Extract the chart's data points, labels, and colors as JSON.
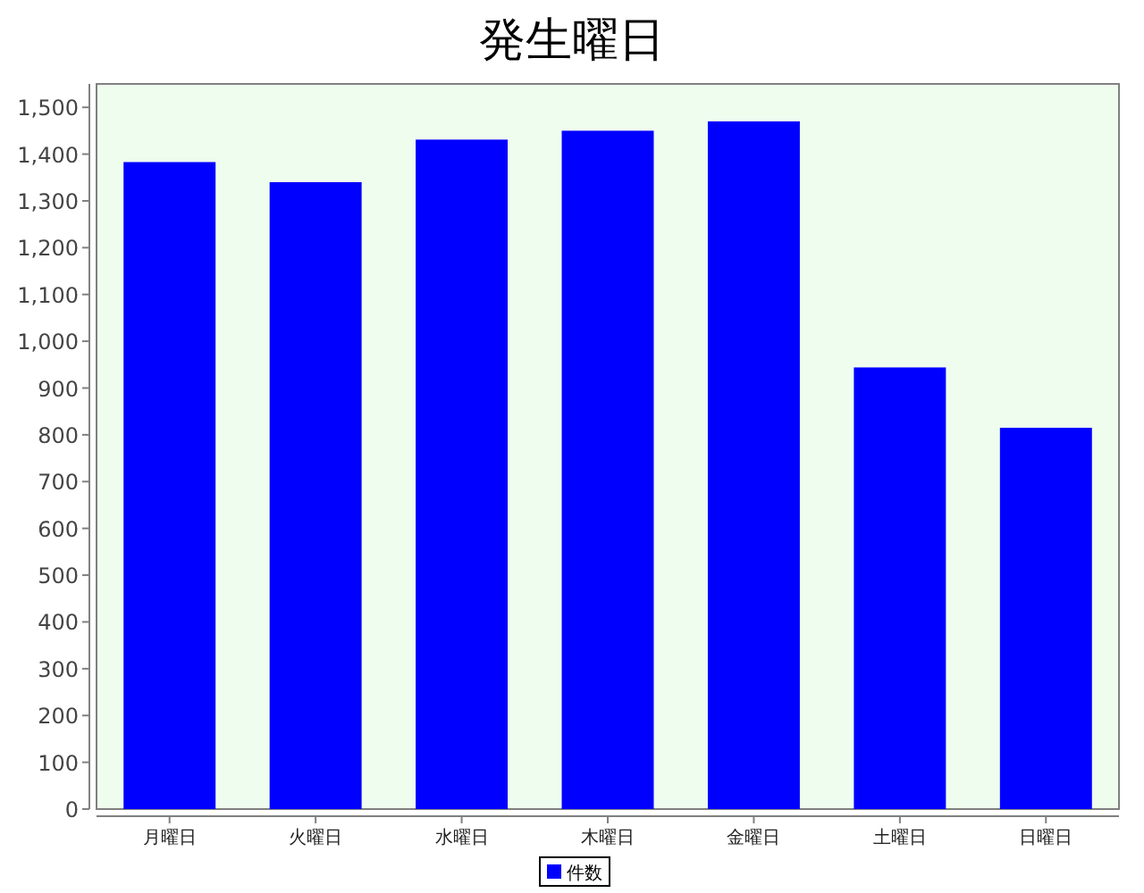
{
  "chart_data": {
    "type": "bar",
    "title": "発生曜日",
    "categories": [
      "月曜日",
      "火曜日",
      "水曜日",
      "木曜日",
      "金曜日",
      "土曜日",
      "日曜日"
    ],
    "series": [
      {
        "name": "件数",
        "color": "#0000ff",
        "values": [
          1383,
          1340,
          1431,
          1450,
          1470,
          944,
          815
        ]
      }
    ],
    "ylim": [
      0,
      1550
    ],
    "yticks": [
      {
        "value": 0,
        "label": "0"
      },
      {
        "value": 100,
        "label": "100"
      },
      {
        "value": 200,
        "label": "200"
      },
      {
        "value": 300,
        "label": "300"
      },
      {
        "value": 400,
        "label": "400"
      },
      {
        "value": 500,
        "label": "500"
      },
      {
        "value": 600,
        "label": "600"
      },
      {
        "value": 700,
        "label": "700"
      },
      {
        "value": 800,
        "label": "800"
      },
      {
        "value": 900,
        "label": "900"
      },
      {
        "value": 1000,
        "label": "1,000"
      },
      {
        "value": 1100,
        "label": "1,100"
      },
      {
        "value": 1200,
        "label": "1,200"
      },
      {
        "value": 1300,
        "label": "1,300"
      },
      {
        "value": 1400,
        "label": "1,400"
      },
      {
        "value": 1500,
        "label": "1,500"
      }
    ],
    "legend": "bottom"
  }
}
